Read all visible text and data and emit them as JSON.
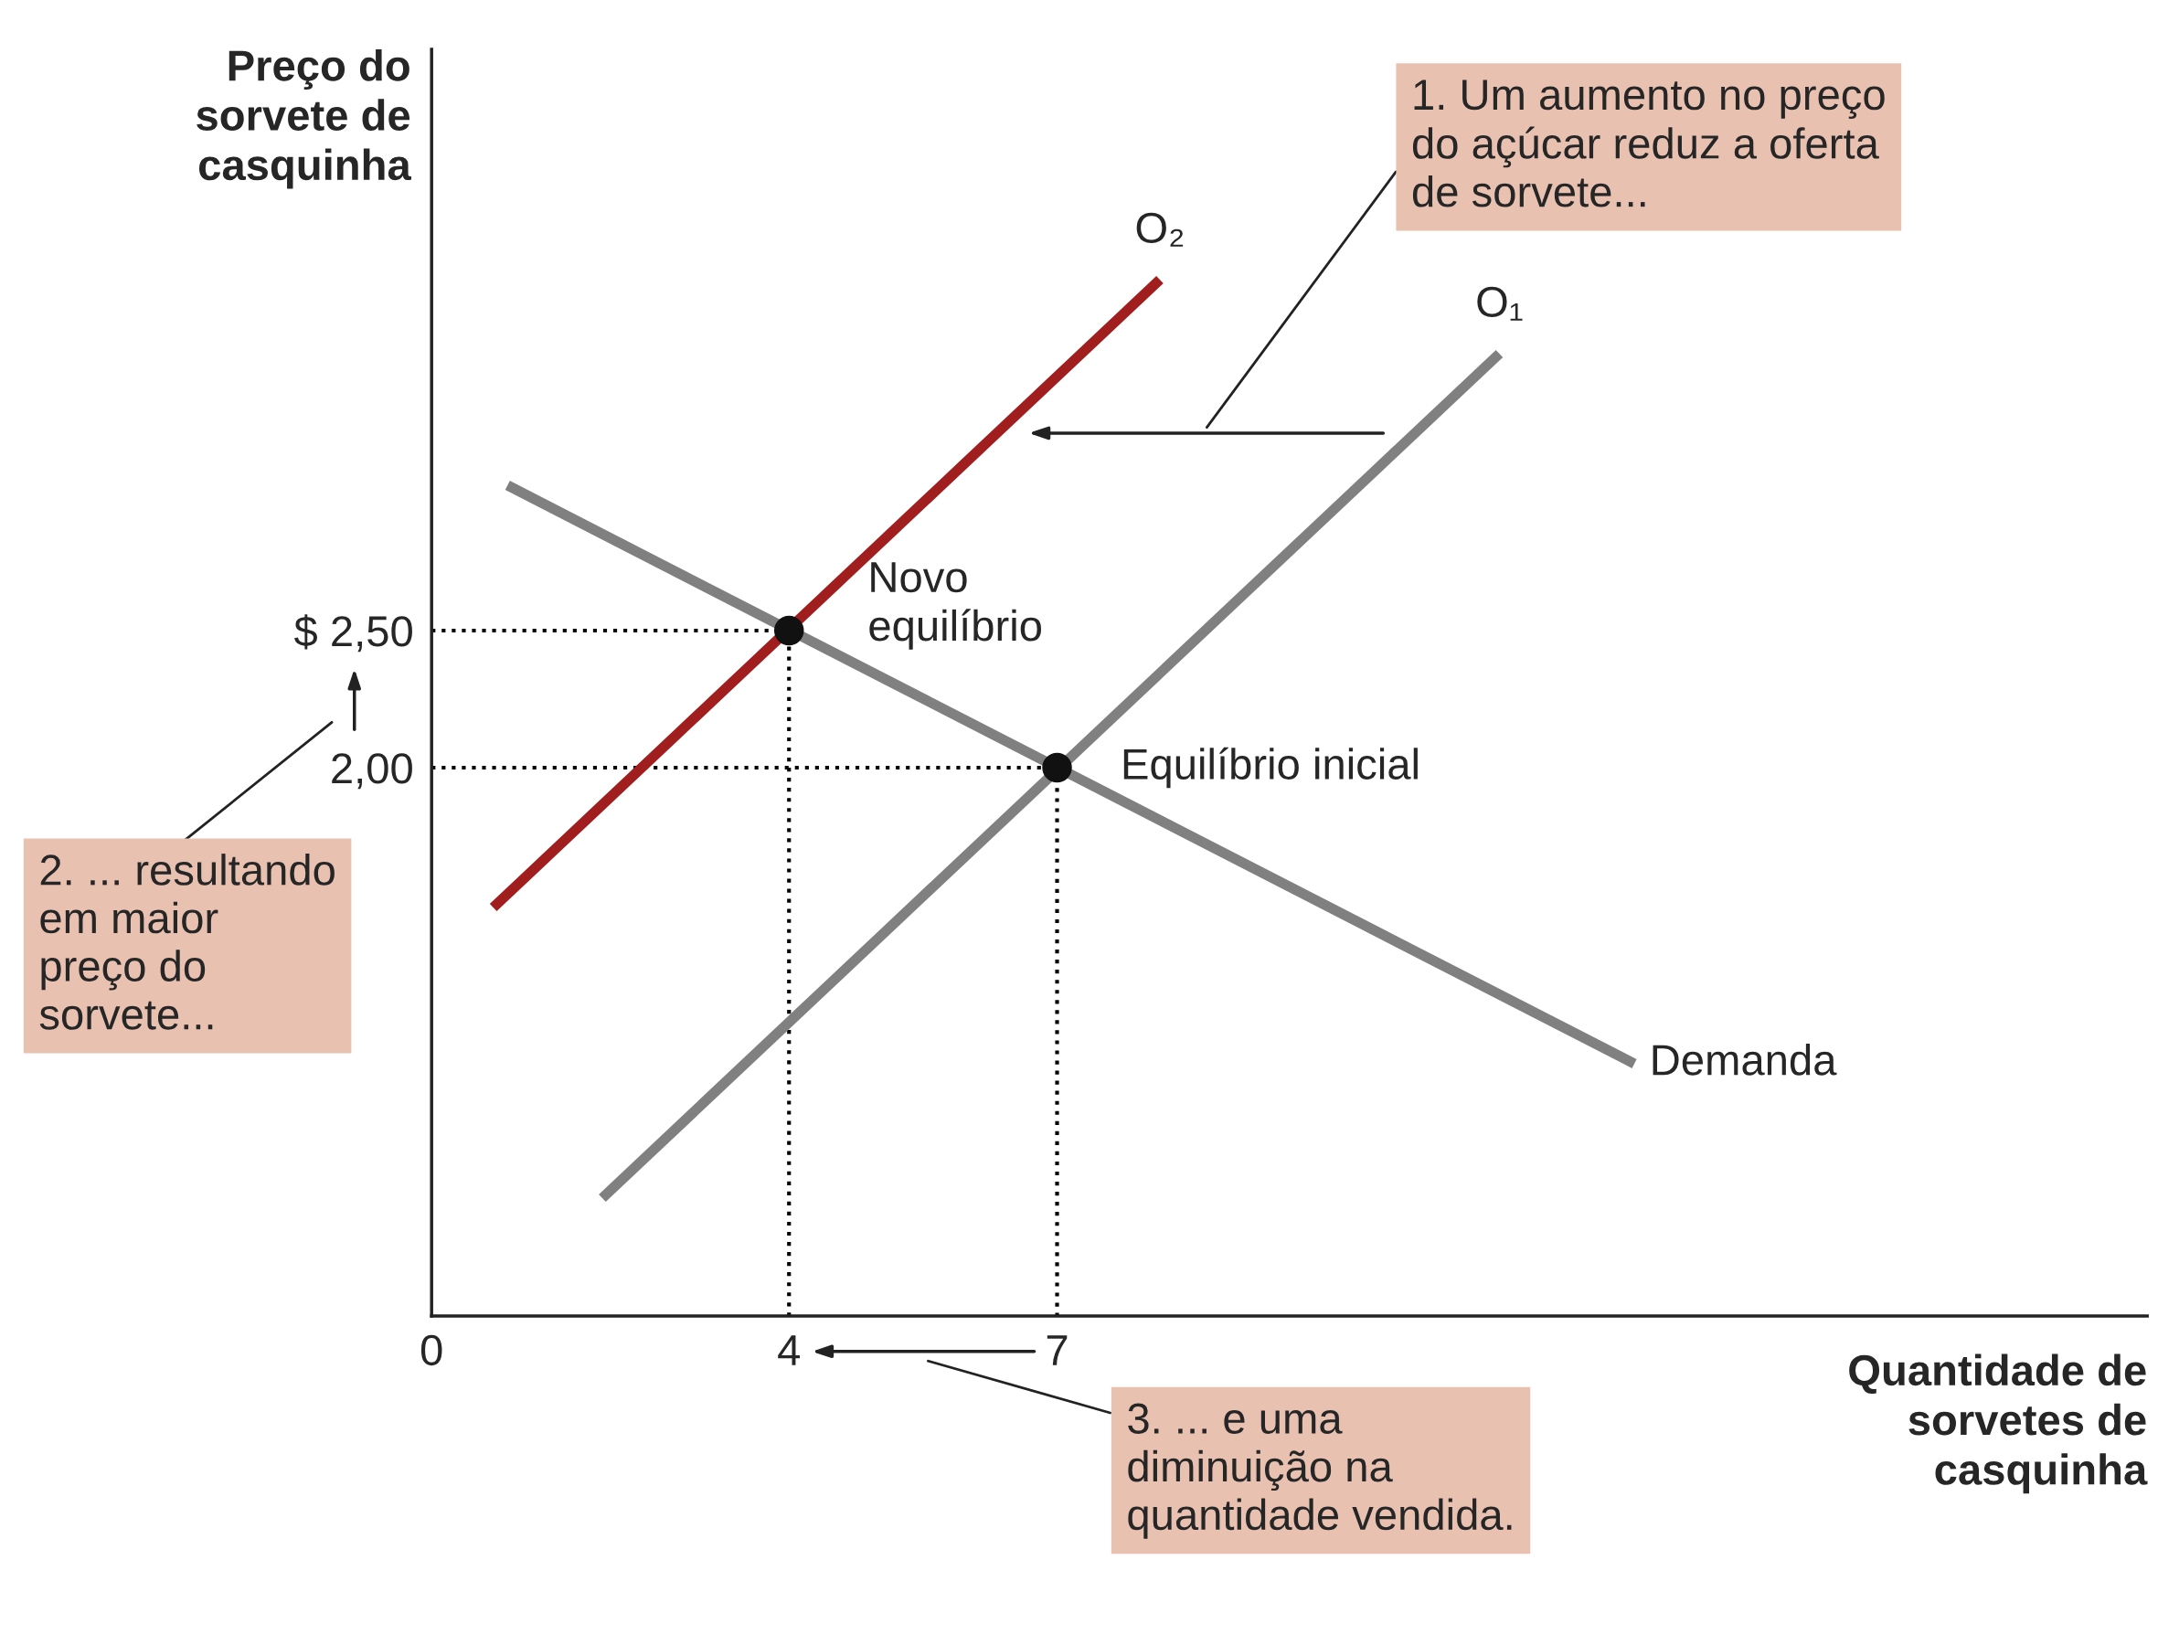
{
  "chart_data": {
    "type": "line",
    "xlabel": "Quantidade de\nsorvetes de\ncasquinha",
    "ylabel": "Preço do\nsorvete de\ncasquinha",
    "xlim": [
      0,
      19.2
    ],
    "ylim": [
      0,
      4.62
    ],
    "xticks": [
      0,
      4,
      7
    ],
    "yticks": [
      {
        "value": 2.0,
        "label": "2,00"
      },
      {
        "value": 2.5,
        "label": "$ 2,50"
      }
    ],
    "tick_labels": "xy",
    "grid": false,
    "series": [
      {
        "name": "Demanda",
        "color": "#808080",
        "x": [
          0.85,
          13.46
        ],
        "values": [
          3.03,
          0.92
        ]
      },
      {
        "name": "O₁",
        "color": "#808080",
        "x": [
          1.91,
          11.95
        ],
        "values": [
          0.43,
          3.51
        ]
      },
      {
        "name": "O₂",
        "color": "#a01e1e",
        "x": [
          0.69,
          8.15
        ],
        "values": [
          1.49,
          3.78
        ]
      },
      {
        "color": "#000000",
        "line_style": "dotted",
        "x": [
          0,
          4,
          4
        ],
        "values": [
          2.5,
          2.5,
          0
        ]
      },
      {
        "color": "#000000",
        "line_style": "dotted",
        "x": [
          0,
          7,
          7
        ],
        "values": [
          2.0,
          2.0,
          0
        ]
      },
      {
        "type": "scatter",
        "color": "#111111",
        "marker": "circle",
        "x": [
          4,
          7
        ],
        "values": [
          2.5,
          2.0
        ]
      }
    ],
    "annotations": [
      {
        "text": "Novo\nequilíbrio",
        "x": 4,
        "y": 2.5
      },
      {
        "text": "Equilíbrio inicial",
        "x": 7,
        "y": 2.0
      },
      "1. Um aumento no preço\ndo açúcar reduz a oferta\nde sorvete...",
      "2. ... resultando\nem maior\npreço do\nsorvete...",
      "3. ... e uma\ndiminuição na\nquantidade vendida."
    ]
  }
}
